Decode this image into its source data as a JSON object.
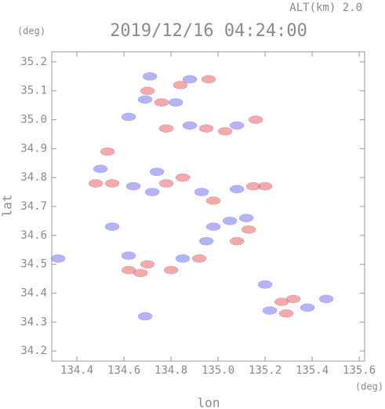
{
  "chart_data": {
    "type": "scatter",
    "title": "2019/12/16 04:24:00",
    "subtitle": "ALT(km) 2.0",
    "y_unit": "(deg)",
    "x_unit": "(deg)",
    "xlabel": "lon",
    "ylabel": "lat",
    "xlim": [
      134.293,
      135.623
    ],
    "ylim": [
      34.165,
      35.235
    ],
    "xticks": [
      134.4,
      134.6,
      134.8,
      {
        "value": 135.0,
        "label": "135.0"
      },
      135.2,
      135.4,
      135.6
    ],
    "yticks": [
      34.2,
      34.3,
      34.4,
      34.5,
      34.6,
      34.7,
      34.8,
      34.9,
      {
        "value": 35.0,
        "label": "35.0"
      },
      35.1,
      35.2
    ],
    "x": [
      134.71,
      134.7,
      134.69,
      134.84,
      134.88,
      134.96,
      134.76,
      134.82,
      134.62,
      134.78,
      134.88,
      134.95,
      135.03,
      135.08,
      135.16,
      134.53,
      134.5,
      134.48,
      134.55,
      134.64,
      134.72,
      134.78,
      134.85,
      134.74,
      134.93,
      134.98,
      135.08,
      135.15,
      135.2,
      135.05,
      135.12,
      134.98,
      134.95,
      135.08,
      135.13,
      134.55,
      134.85,
      134.92,
      134.8,
      134.7,
      134.62,
      134.67,
      134.32,
      134.62,
      135.27,
      135.32,
      135.38,
      135.46,
      135.22,
      135.29,
      134.69,
      135.2
    ],
    "y": [
      35.15,
      35.1,
      35.07,
      35.12,
      35.14,
      35.14,
      35.06,
      35.06,
      35.01,
      34.97,
      34.98,
      34.97,
      34.96,
      34.98,
      35.0,
      34.89,
      34.83,
      34.78,
      34.78,
      34.77,
      34.75,
      34.78,
      34.8,
      34.82,
      34.75,
      34.72,
      34.76,
      34.77,
      34.77,
      34.65,
      34.66,
      34.63,
      34.58,
      34.58,
      34.62,
      34.63,
      34.52,
      34.52,
      34.48,
      34.5,
      34.48,
      34.47,
      34.52,
      34.53,
      34.37,
      34.38,
      34.35,
      34.38,
      34.34,
      34.33,
      34.32,
      34.43
    ],
    "colors": [
      "#8080f0",
      "#f07070",
      "#8080f0",
      "#f07070",
      "#8080f0",
      "#f07070",
      "#f07070",
      "#8080f0",
      "#8080f0",
      "#f07070",
      "#8080f0",
      "#f07070",
      "#f07070",
      "#8080f0",
      "#f07070",
      "#f07070",
      "#8080f0",
      "#f07070",
      "#f07070",
      "#8080f0",
      "#8080f0",
      "#f07070",
      "#f07070",
      "#8080f0",
      "#8080f0",
      "#f07070",
      "#8080f0",
      "#f07070",
      "#f07070",
      "#8080f0",
      "#8080f0",
      "#8080f0",
      "#8080f0",
      "#f07070",
      "#f07070",
      "#8080f0",
      "#8080f0",
      "#f07070",
      "#f07070",
      "#f07070",
      "#f07070",
      "#f07070",
      "#8080f0",
      "#8080f0",
      "#f07070",
      "#f07070",
      "#8080f0",
      "#8080f0",
      "#8080f0",
      "#f07070",
      "#8080f0",
      "#8080f0"
    ]
  }
}
